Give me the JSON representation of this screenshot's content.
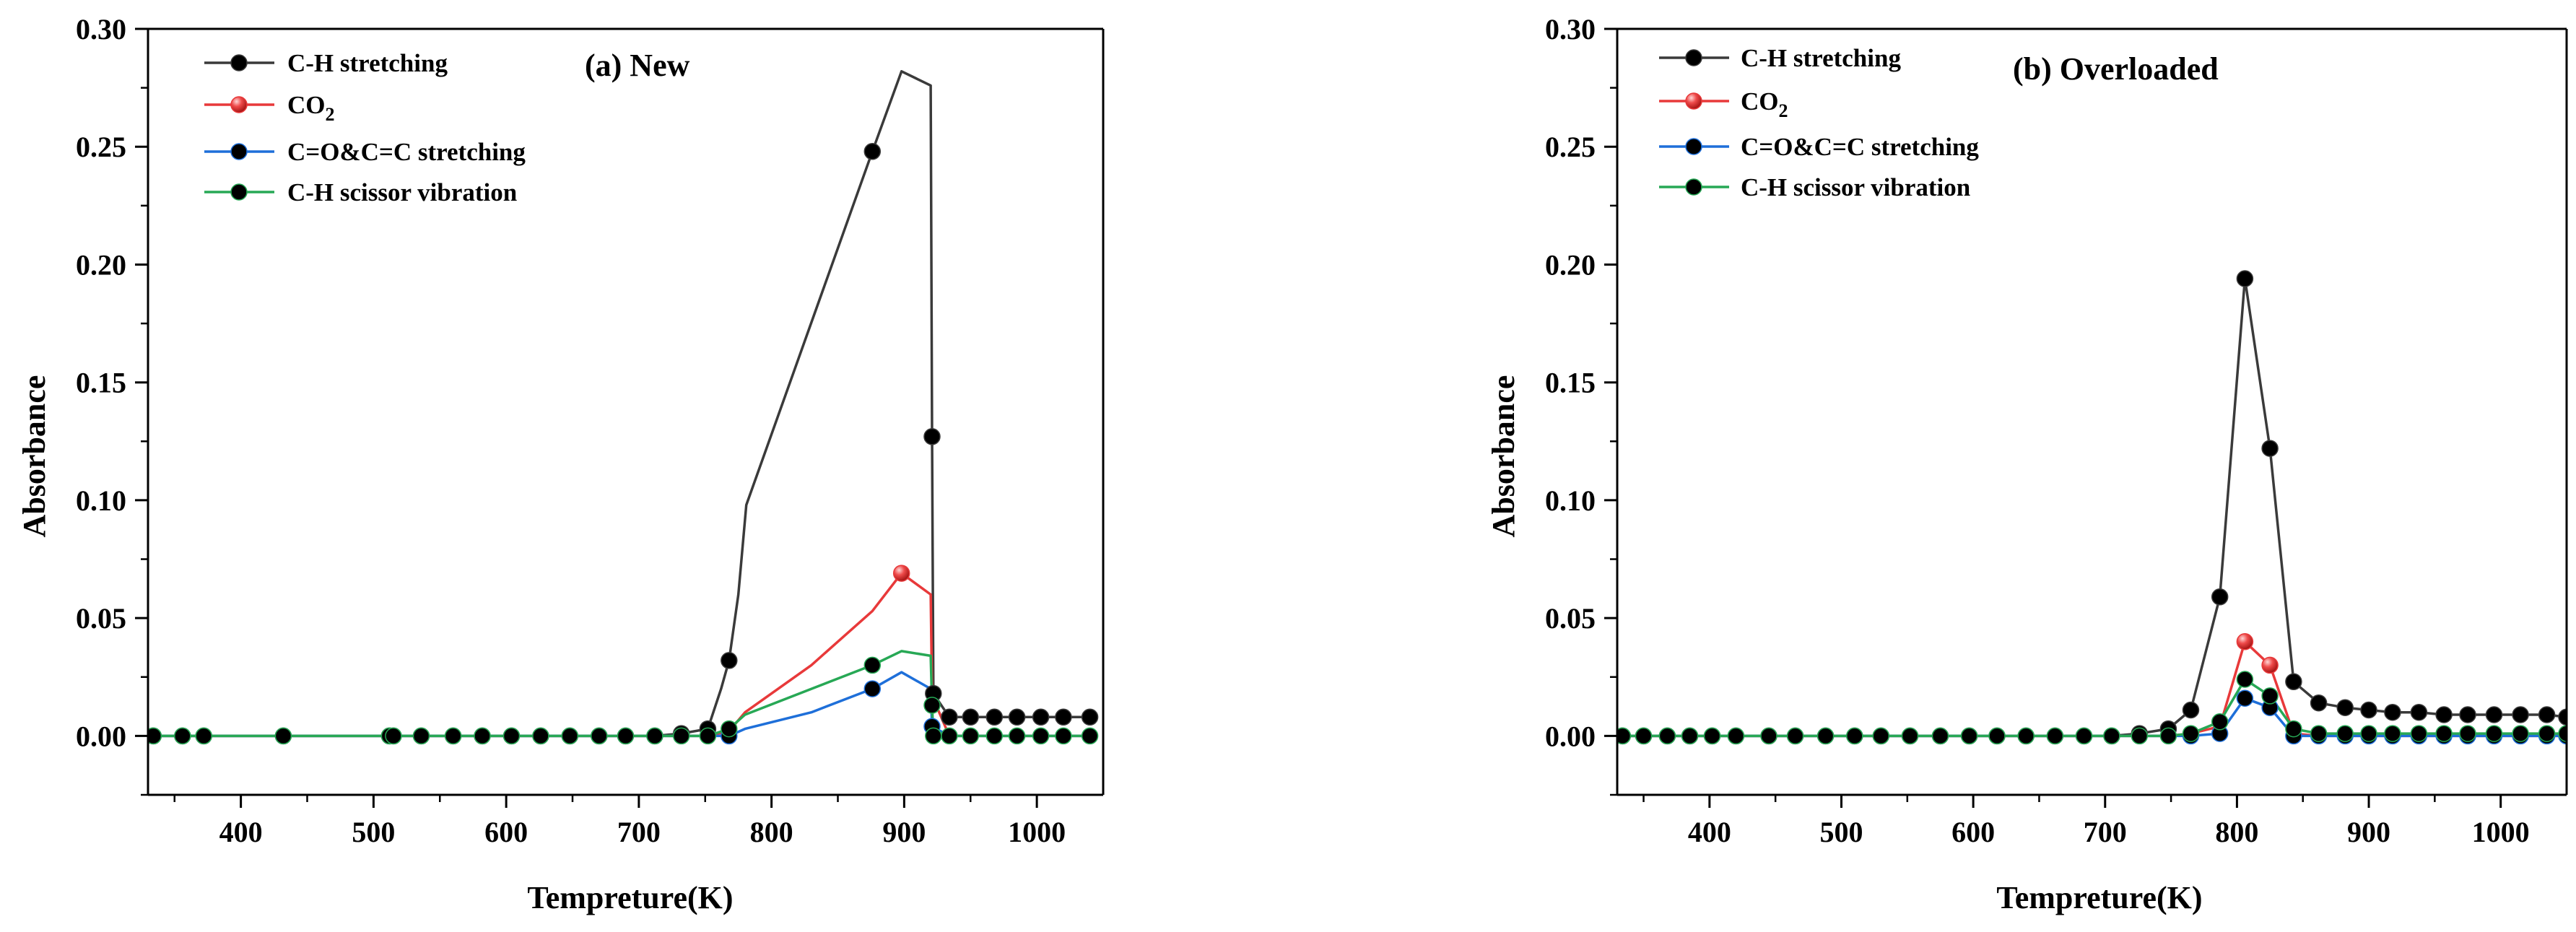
{
  "chart_data": [
    {
      "type": "line",
      "title": "(a) New",
      "xlabel": "Tempreture(K)",
      "ylabel": "Absorbance",
      "xlim": [
        330,
        1050
      ],
      "ylim": [
        -0.025,
        0.3
      ],
      "xticks": [
        400,
        500,
        600,
        700,
        800,
        900,
        1000
      ],
      "xtick_labels": [
        "400",
        "500",
        "600",
        "700",
        "800",
        "900",
        "1000"
      ],
      "yticks": [
        0.0,
        0.05,
        0.1,
        0.15,
        0.2,
        0.25,
        0.3
      ],
      "ytick_labels": [
        "0.00",
        "0.05",
        "0.10",
        "0.15",
        "0.20",
        "0.25",
        "0.30"
      ],
      "legend_position": "top-left",
      "series": [
        {
          "name": "C-H stretching",
          "color": "#3a3a3a",
          "x": [
            334,
            356,
            372,
            432,
            512,
            515,
            536,
            560,
            582,
            604,
            626,
            648,
            670,
            690,
            712,
            732,
            752,
            762,
            768,
            775,
            781,
            876,
            898,
            920,
            921,
            922,
            934,
            950,
            968,
            985,
            1003,
            1020,
            1040
          ],
          "y": [
            0.0,
            0.0,
            0.0,
            0.0,
            0.0,
            0.0,
            0.0,
            0.0,
            0.0,
            0.0,
            0.0,
            0.0,
            0.0,
            0.0,
            0.0,
            0.001,
            0.003,
            0.02,
            0.032,
            0.06,
            0.098,
            0.248,
            0.282,
            0.276,
            0.127,
            0.018,
            0.008,
            0.008,
            0.008,
            0.008,
            0.008,
            0.008,
            0.008
          ],
          "marker_indices": [
            0,
            1,
            2,
            3,
            4,
            5,
            6,
            7,
            8,
            9,
            10,
            11,
            12,
            13,
            14,
            15,
            16,
            18,
            21,
            24,
            25,
            26,
            27,
            28,
            29,
            30,
            31,
            32
          ]
        },
        {
          "name": "CO2",
          "color": "#e8393a",
          "x": [
            334,
            432,
            512,
            752,
            768,
            780,
            830,
            876,
            898,
            920,
            921,
            934,
            968,
            1003,
            1040
          ],
          "y": [
            0.0,
            0.0,
            0.0,
            0.0,
            0.002,
            0.01,
            0.03,
            0.053,
            0.069,
            0.06,
            0.017,
            0.0,
            0.0,
            0.0,
            0.0
          ],
          "marker_indices": [
            8
          ]
        },
        {
          "name": "C=O&C=C stretching",
          "color": "#1e6fd9",
          "x": [
            334,
            432,
            512,
            752,
            768,
            780,
            830,
            876,
            898,
            920,
            921,
            934,
            968,
            1003,
            1040
          ],
          "y": [
            0.0,
            0.0,
            0.0,
            0.0,
            0.0,
            0.003,
            0.01,
            0.02,
            0.027,
            0.02,
            0.004,
            0.0,
            0.0,
            0.0,
            0.0
          ],
          "marker_indices": [
            4,
            7,
            10
          ]
        },
        {
          "name": "C-H scissor vibration",
          "color": "#27a855",
          "x": [
            334,
            356,
            372,
            432,
            512,
            515,
            536,
            560,
            582,
            604,
            626,
            648,
            670,
            690,
            712,
            732,
            752,
            768,
            780,
            876,
            898,
            920,
            921,
            922,
            934,
            950,
            968,
            985,
            1003,
            1020,
            1040
          ],
          "y": [
            0.0,
            0.0,
            0.0,
            0.0,
            0.0,
            0.0,
            0.0,
            0.0,
            0.0,
            0.0,
            0.0,
            0.0,
            0.0,
            0.0,
            0.0,
            0.0,
            0.0,
            0.003,
            0.009,
            0.03,
            0.036,
            0.034,
            0.013,
            0.0,
            0.0,
            0.0,
            0.0,
            0.0,
            0.0,
            0.0,
            0.0
          ],
          "marker_indices": [
            0,
            1,
            2,
            3,
            4,
            5,
            6,
            7,
            8,
            9,
            10,
            11,
            12,
            13,
            14,
            15,
            16,
            17,
            19,
            22,
            23,
            24,
            25,
            26,
            27,
            28,
            29,
            30
          ]
        }
      ]
    },
    {
      "type": "line",
      "title": "(b) Overloaded",
      "xlabel": "Tempreture(K)",
      "ylabel": "Absorbance",
      "xlim": [
        330,
        1050
      ],
      "ylim": [
        -0.025,
        0.3
      ],
      "xticks": [
        400,
        500,
        600,
        700,
        800,
        900,
        1000
      ],
      "xtick_labels": [
        "400",
        "500",
        "600",
        "700",
        "800",
        "900",
        "1000"
      ],
      "yticks": [
        0.0,
        0.05,
        0.1,
        0.15,
        0.2,
        0.25,
        0.3
      ],
      "ytick_labels": [
        "0.00",
        "0.05",
        "0.10",
        "0.15",
        "0.20",
        "0.25",
        "0.30"
      ],
      "legend_position": "top-left",
      "series": [
        {
          "name": "C-H stretching",
          "color": "#3a3a3a",
          "x": [
            334,
            350,
            368,
            385,
            402,
            420,
            445,
            465,
            488,
            510,
            530,
            552,
            575,
            597,
            618,
            640,
            662,
            684,
            705,
            726,
            748,
            765,
            787,
            806,
            825,
            843,
            862,
            882,
            900,
            918,
            938,
            957,
            975,
            995,
            1015,
            1035,
            1050
          ],
          "y": [
            0.0,
            0.0,
            0.0,
            0.0,
            0.0,
            0.0,
            0.0,
            0.0,
            0.0,
            0.0,
            0.0,
            0.0,
            0.0,
            0.0,
            0.0,
            0.0,
            0.0,
            0.0,
            0.0,
            0.001,
            0.003,
            0.011,
            0.059,
            0.194,
            0.122,
            0.023,
            0.014,
            0.012,
            0.011,
            0.01,
            0.01,
            0.009,
            0.009,
            0.009,
            0.009,
            0.009,
            0.008
          ],
          "marker_indices": [
            0,
            1,
            2,
            3,
            4,
            5,
            6,
            7,
            8,
            9,
            10,
            11,
            12,
            13,
            14,
            15,
            16,
            17,
            18,
            19,
            20,
            21,
            22,
            23,
            24,
            25,
            26,
            27,
            28,
            29,
            30,
            31,
            32,
            33,
            34,
            35,
            36
          ]
        },
        {
          "name": "CO2",
          "color": "#e8393a",
          "x": [
            334,
            500,
            700,
            748,
            765,
            787,
            806,
            825,
            843,
            862,
            900,
            957,
            1015,
            1050
          ],
          "y": [
            0.0,
            0.0,
            0.0,
            0.0,
            0.001,
            0.004,
            0.04,
            0.03,
            0.001,
            0.0,
            0.0,
            0.0,
            0.0,
            0.0
          ],
          "marker_indices": [
            6,
            7
          ]
        },
        {
          "name": "C=O&C=C stretching",
          "color": "#1e6fd9",
          "x": [
            334,
            500,
            700,
            748,
            765,
            787,
            806,
            825,
            843,
            862,
            882,
            900,
            918,
            938,
            957,
            975,
            995,
            1015,
            1035,
            1050
          ],
          "y": [
            0.0,
            0.0,
            0.0,
            0.0,
            0.0,
            0.001,
            0.016,
            0.012,
            0.0,
            0.0,
            0.0,
            0.0,
            0.0,
            0.0,
            0.0,
            0.0,
            0.0,
            0.0,
            0.0,
            0.0
          ],
          "marker_indices": [
            4,
            5,
            6,
            7,
            8,
            9,
            10,
            11,
            12,
            13,
            14,
            15,
            16,
            17,
            18,
            19
          ]
        },
        {
          "name": "C-H scissor vibration",
          "color": "#27a855",
          "x": [
            334,
            350,
            368,
            385,
            402,
            420,
            445,
            465,
            488,
            510,
            530,
            552,
            575,
            597,
            618,
            640,
            662,
            684,
            705,
            726,
            748,
            765,
            787,
            806,
            825,
            843,
            862,
            882,
            900,
            918,
            938,
            957,
            975,
            995,
            1015,
            1035,
            1050
          ],
          "y": [
            0.0,
            0.0,
            0.0,
            0.0,
            0.0,
            0.0,
            0.0,
            0.0,
            0.0,
            0.0,
            0.0,
            0.0,
            0.0,
            0.0,
            0.0,
            0.0,
            0.0,
            0.0,
            0.0,
            0.0,
            0.0,
            0.001,
            0.006,
            0.024,
            0.017,
            0.003,
            0.001,
            0.001,
            0.001,
            0.001,
            0.001,
            0.001,
            0.001,
            0.001,
            0.001,
            0.001,
            0.001
          ],
          "marker_indices": [
            0,
            1,
            2,
            3,
            4,
            5,
            6,
            7,
            8,
            9,
            10,
            11,
            12,
            13,
            14,
            15,
            16,
            17,
            18,
            19,
            20,
            21,
            22,
            23,
            24,
            25,
            26,
            27,
            28,
            29,
            30,
            31,
            32,
            33,
            34,
            35,
            36
          ]
        }
      ]
    }
  ]
}
